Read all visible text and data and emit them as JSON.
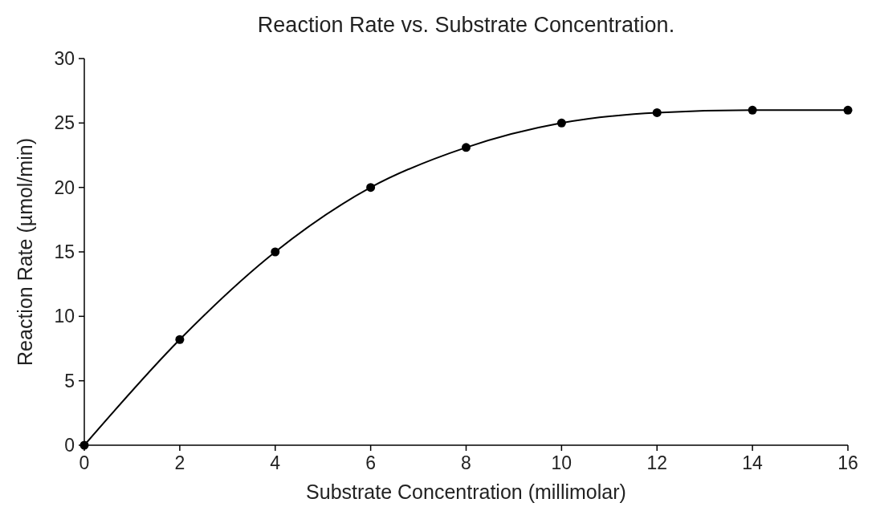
{
  "chart_data": {
    "type": "line",
    "title": "Reaction Rate vs. Substrate Concentration.",
    "xlabel": "Substrate Concentration (millimolar)",
    "ylabel": "Reaction Rate (µmol/min)",
    "x": [
      0,
      2,
      4,
      6,
      8,
      10,
      12,
      14,
      16
    ],
    "series": [
      {
        "color": "#000000",
        "values": [
          0,
          8.2,
          15,
          20,
          23.1,
          25,
          25.8,
          26,
          26
        ]
      }
    ],
    "xlim": [
      0,
      16
    ],
    "xticks": [
      0,
      2,
      4,
      6,
      8,
      10,
      12,
      14,
      16
    ],
    "ylim": [
      0,
      30
    ],
    "yticks": [
      0,
      5,
      10,
      15,
      20,
      25,
      30
    ],
    "marker": "circle",
    "line_style": "solid",
    "grid": false
  }
}
